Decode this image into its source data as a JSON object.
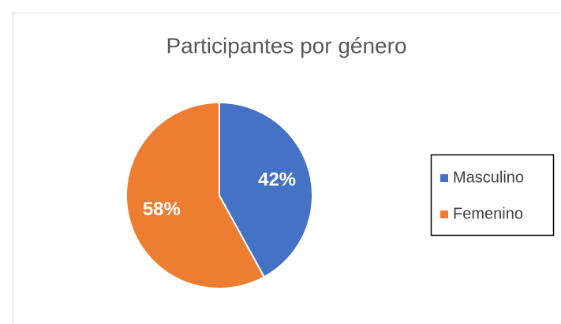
{
  "chart_data": {
    "type": "pie",
    "title": "Participantes por género",
    "categories": [
      "Masculino",
      "Femenino"
    ],
    "values": [
      42,
      58
    ],
    "value_labels": [
      "42%",
      "58%"
    ],
    "colors": [
      "#4472c4",
      "#ed7d31"
    ],
    "legend": "right"
  }
}
